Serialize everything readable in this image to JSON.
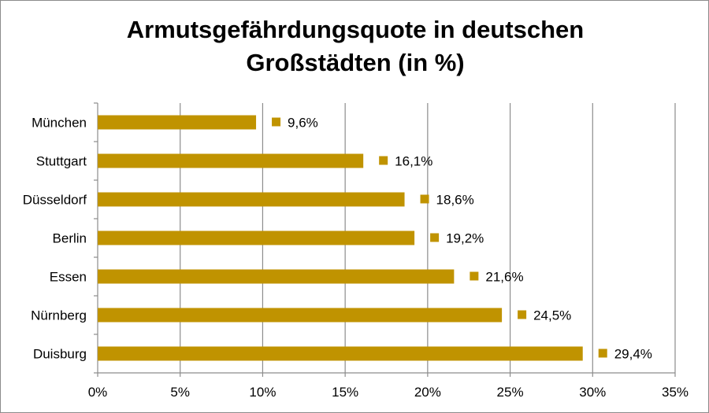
{
  "chart_data": {
    "type": "bar",
    "orientation": "horizontal",
    "title_line1": "Armutsgefährdungsquote in deutschen",
    "title_line2": "Großstädten (in %)",
    "categories": [
      "München",
      "Stuttgart",
      "Düsseldorf",
      "Berlin",
      "Essen",
      "Nürnberg",
      "Duisburg"
    ],
    "values": [
      9.6,
      16.1,
      18.6,
      19.2,
      21.6,
      24.5,
      29.4
    ],
    "value_labels": [
      "9,6%",
      "16,1%",
      "18,6%",
      "19,2%",
      "21,6%",
      "24,5%",
      "29,4%"
    ],
    "x_ticks": [
      0,
      5,
      10,
      15,
      20,
      25,
      30,
      35
    ],
    "x_tick_labels": [
      "0%",
      "5%",
      "10%",
      "15%",
      "20%",
      "25%",
      "30%",
      "35%"
    ],
    "xlim": [
      0,
      35
    ],
    "grid": "vertical",
    "bar_color": "#C09300",
    "grid_color": "#8c8c8c",
    "axis_color": "#8c8c8c",
    "legend": "none"
  }
}
